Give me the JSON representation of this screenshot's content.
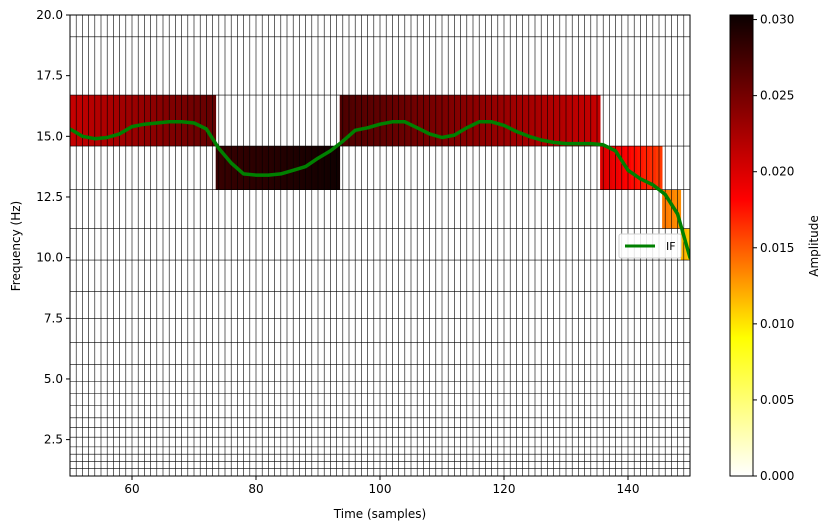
{
  "chart_data": {
    "type": "heatmap",
    "title": "",
    "xlabel": "Time (samples)",
    "ylabel": "Frequency (Hz)",
    "xlim": [
      50,
      150
    ],
    "ylim": [
      1,
      20
    ],
    "x_ticks": [
      "60",
      "80",
      "100",
      "120",
      "140"
    ],
    "y_ticks": [
      "2.5",
      "5.0",
      "7.5",
      "10.0",
      "12.5",
      "15.0",
      "17.5",
      "20.0"
    ],
    "colorbar": {
      "label": "Amplitude",
      "range": [
        0,
        0.0303
      ],
      "ticks": [
        "0.000",
        "0.005",
        "0.010",
        "0.015",
        "0.020",
        "0.025",
        "0.030"
      ],
      "colormap": "hot_r"
    },
    "bands": [
      {
        "t_start": 50,
        "t_end": 73.5,
        "f_low": 14.6,
        "f_high": 16.7,
        "amp_start": 0.021,
        "amp_end": 0.026
      },
      {
        "t_start": 73.5,
        "t_end": 93.5,
        "f_low": 12.8,
        "f_high": 14.6,
        "amp_start": 0.028,
        "amp_end": 0.03
      },
      {
        "t_start": 93.5,
        "t_end": 135.5,
        "f_low": 14.6,
        "f_high": 16.7,
        "amp_start": 0.027,
        "amp_end": 0.021
      },
      {
        "t_start": 135.5,
        "t_end": 145.5,
        "f_low": 12.8,
        "f_high": 14.6,
        "amp_start": 0.02,
        "amp_end": 0.016
      },
      {
        "t_start": 145.5,
        "t_end": 148.5,
        "f_low": 11.2,
        "f_high": 12.8,
        "amp_start": 0.014,
        "amp_end": 0.013
      },
      {
        "t_start": 148.5,
        "t_end": 150,
        "f_low": 9.9,
        "f_high": 11.2,
        "amp_start": 0.012,
        "amp_end": 0.011
      }
    ],
    "freq_grid_lines": [
      1.3,
      1.6,
      1.9,
      2.2,
      2.6,
      3.0,
      3.4,
      3.9,
      4.4,
      4.9,
      5.6,
      6.5,
      7.5,
      8.6,
      9.9,
      11.2,
      12.8,
      14.6,
      16.7,
      19.1
    ],
    "time_grid_step": 1,
    "series": [
      {
        "name": "IF",
        "color": "#008000",
        "x": [
          50,
          52,
          54,
          56,
          58,
          60,
          62,
          64,
          66,
          68,
          70,
          72,
          74,
          76,
          78,
          80,
          82,
          84,
          86,
          88,
          90,
          92,
          94,
          96,
          98,
          100,
          102,
          104,
          106,
          108,
          110,
          112,
          114,
          116,
          118,
          120,
          122,
          124,
          126,
          128,
          130,
          132,
          134,
          136,
          138,
          140,
          142,
          144,
          146,
          148,
          150
        ],
        "y": [
          15.3,
          15.0,
          14.9,
          14.95,
          15.1,
          15.4,
          15.5,
          15.55,
          15.6,
          15.6,
          15.55,
          15.3,
          14.5,
          13.9,
          13.45,
          13.4,
          13.4,
          13.45,
          13.6,
          13.75,
          14.1,
          14.4,
          14.8,
          15.25,
          15.35,
          15.5,
          15.6,
          15.6,
          15.35,
          15.1,
          14.95,
          15.05,
          15.35,
          15.6,
          15.6,
          15.45,
          15.2,
          15.0,
          14.85,
          14.75,
          14.7,
          14.7,
          14.7,
          14.65,
          14.4,
          13.6,
          13.25,
          13.0,
          12.6,
          11.8,
          10.0
        ]
      }
    ],
    "legend": {
      "placement": "right",
      "entries": [
        "IF"
      ]
    }
  }
}
